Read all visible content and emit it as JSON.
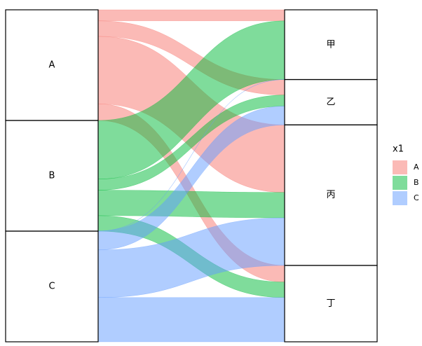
{
  "chart_data": {
    "type": "alluvial",
    "legend_title": "x1",
    "categories": [
      "甲",
      "乙",
      "丙",
      "丁"
    ],
    "series": [
      {
        "name": "A",
        "color": "#F8766D",
        "values": [
          10,
          14,
          61,
          15
        ]
      },
      {
        "name": "B",
        "color": "#00BA38",
        "values": [
          53,
          10,
          23,
          14
        ]
      },
      {
        "name": "C",
        "color": "#619CFF",
        "values": [
          0,
          17,
          43,
          40
        ]
      }
    ]
  }
}
